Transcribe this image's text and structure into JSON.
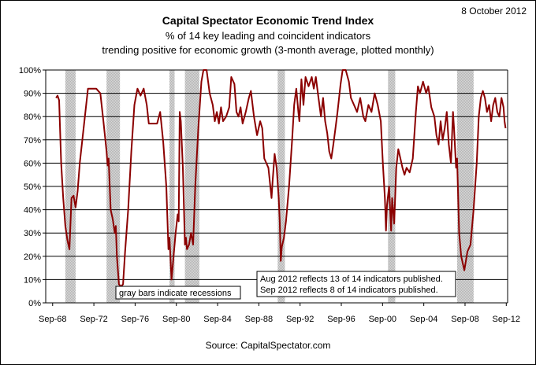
{
  "header": {
    "date": "8 October 2012",
    "title": "Capital Spectator Economic Trend Index",
    "subtitle1": "% of 14 key leading and coincident indicators",
    "subtitle2": "trending positive for economic growth (3-month average, plotted monthly)"
  },
  "footer": {
    "source": "Source: CapitalSpectator.com"
  },
  "colors": {
    "line": "#8b0000",
    "recession": "#b3b3b3",
    "grid": "#000000"
  },
  "chart_data": {
    "type": "line",
    "title": "Capital Spectator Economic Trend Index",
    "xlabel": "",
    "ylabel": "",
    "xlim": [
      1968.0,
      2012.8
    ],
    "ylim": [
      0,
      100
    ],
    "yticks": [
      "0%",
      "10%",
      "20%",
      "30%",
      "40%",
      "50%",
      "60%",
      "70%",
      "80%",
      "90%",
      "100%"
    ],
    "xticks": [
      {
        "x": 1968.67,
        "label": "Sep-68"
      },
      {
        "x": 1972.67,
        "label": "Sep-72"
      },
      {
        "x": 1976.67,
        "label": "Sep-76"
      },
      {
        "x": 1980.67,
        "label": "Sep-80"
      },
      {
        "x": 1984.67,
        "label": "Sep-84"
      },
      {
        "x": 1988.67,
        "label": "Sep-88"
      },
      {
        "x": 1992.67,
        "label": "Sep-92"
      },
      {
        "x": 1996.67,
        "label": "Sep-96"
      },
      {
        "x": 2000.67,
        "label": "Sep-00"
      },
      {
        "x": 2004.67,
        "label": "Sep-04"
      },
      {
        "x": 2008.67,
        "label": "Sep-08"
      },
      {
        "x": 2012.67,
        "label": "Sep-12"
      }
    ],
    "grid": true,
    "recessions": [
      [
        1969.9,
        1970.9
      ],
      [
        1973.9,
        1975.2
      ],
      [
        1980.0,
        1980.5
      ],
      [
        1981.5,
        1982.9
      ],
      [
        1990.5,
        1991.2
      ],
      [
        2001.2,
        2001.9
      ],
      [
        2007.9,
        2009.5
      ]
    ],
    "series": [
      {
        "name": "",
        "points": [
          [
            1969.0,
            88
          ],
          [
            1969.15,
            89
          ],
          [
            1969.3,
            87
          ],
          [
            1969.5,
            60
          ],
          [
            1969.7,
            45
          ],
          [
            1969.9,
            33
          ],
          [
            1970.1,
            27
          ],
          [
            1970.3,
            23
          ],
          [
            1970.5,
            45
          ],
          [
            1970.7,
            46
          ],
          [
            1970.9,
            41
          ],
          [
            1971.1,
            48
          ],
          [
            1971.3,
            60
          ],
          [
            1971.6,
            72
          ],
          [
            1971.9,
            84
          ],
          [
            1972.1,
            92
          ],
          [
            1972.5,
            92
          ],
          [
            1972.9,
            92
          ],
          [
            1973.3,
            90
          ],
          [
            1973.6,
            78
          ],
          [
            1973.9,
            65
          ],
          [
            1974.0,
            59
          ],
          [
            1974.1,
            62
          ],
          [
            1974.3,
            40
          ],
          [
            1974.5,
            36
          ],
          [
            1974.7,
            30
          ],
          [
            1974.8,
            33
          ],
          [
            1974.9,
            20
          ],
          [
            1975.1,
            8
          ],
          [
            1975.3,
            7
          ],
          [
            1975.5,
            8
          ],
          [
            1975.7,
            22
          ],
          [
            1976.0,
            40
          ],
          [
            1976.3,
            65
          ],
          [
            1976.6,
            85
          ],
          [
            1976.9,
            92
          ],
          [
            1977.2,
            89
          ],
          [
            1977.5,
            92
          ],
          [
            1977.8,
            85
          ],
          [
            1978.0,
            77
          ],
          [
            1978.4,
            77
          ],
          [
            1978.8,
            77
          ],
          [
            1979.1,
            82
          ],
          [
            1979.4,
            69
          ],
          [
            1979.7,
            50
          ],
          [
            1979.9,
            23
          ],
          [
            1980.0,
            28
          ],
          [
            1980.2,
            10
          ],
          [
            1980.4,
            20
          ],
          [
            1980.6,
            30
          ],
          [
            1980.8,
            38
          ],
          [
            1980.9,
            35
          ],
          [
            1981.0,
            82
          ],
          [
            1981.1,
            78
          ],
          [
            1981.3,
            58
          ],
          [
            1981.5,
            25
          ],
          [
            1981.6,
            28
          ],
          [
            1981.7,
            23
          ],
          [
            1981.9,
            25
          ],
          [
            1982.1,
            30
          ],
          [
            1982.3,
            25
          ],
          [
            1982.5,
            50
          ],
          [
            1982.8,
            75
          ],
          [
            1983.1,
            95
          ],
          [
            1983.3,
            100
          ],
          [
            1983.6,
            100
          ],
          [
            1983.9,
            90
          ],
          [
            1984.2,
            85
          ],
          [
            1984.4,
            78
          ],
          [
            1984.6,
            82
          ],
          [
            1984.8,
            77
          ],
          [
            1985.0,
            84
          ],
          [
            1985.2,
            78
          ],
          [
            1985.5,
            80
          ],
          [
            1985.8,
            84
          ],
          [
            1986.0,
            97
          ],
          [
            1986.3,
            94
          ],
          [
            1986.5,
            82
          ],
          [
            1986.7,
            80
          ],
          [
            1986.9,
            84
          ],
          [
            1987.1,
            77
          ],
          [
            1987.4,
            82
          ],
          [
            1987.7,
            88
          ],
          [
            1987.9,
            91
          ],
          [
            1988.2,
            80
          ],
          [
            1988.5,
            72
          ],
          [
            1988.8,
            78
          ],
          [
            1989.0,
            75
          ],
          [
            1989.2,
            62
          ],
          [
            1989.4,
            60
          ],
          [
            1989.6,
            58
          ],
          [
            1989.9,
            45
          ],
          [
            1990.0,
            52
          ],
          [
            1990.2,
            64
          ],
          [
            1990.4,
            58
          ],
          [
            1990.6,
            45
          ],
          [
            1990.7,
            35
          ],
          [
            1990.8,
            18
          ],
          [
            1990.9,
            24
          ],
          [
            1991.1,
            28
          ],
          [
            1991.3,
            35
          ],
          [
            1991.6,
            50
          ],
          [
            1991.9,
            70
          ],
          [
            1992.1,
            85
          ],
          [
            1992.3,
            92
          ],
          [
            1992.5,
            82
          ],
          [
            1992.6,
            78
          ],
          [
            1992.8,
            96
          ],
          [
            1993.0,
            85
          ],
          [
            1993.2,
            97
          ],
          [
            1993.5,
            93
          ],
          [
            1993.8,
            97
          ],
          [
            1994.0,
            92
          ],
          [
            1994.2,
            97
          ],
          [
            1994.4,
            90
          ],
          [
            1994.7,
            80
          ],
          [
            1994.9,
            88
          ],
          [
            1995.1,
            78
          ],
          [
            1995.3,
            73
          ],
          [
            1995.5,
            65
          ],
          [
            1995.7,
            62
          ],
          [
            1995.9,
            68
          ],
          [
            1996.1,
            75
          ],
          [
            1996.3,
            82
          ],
          [
            1996.6,
            94
          ],
          [
            1996.8,
            100
          ],
          [
            1997.1,
            100
          ],
          [
            1997.4,
            95
          ],
          [
            1997.6,
            88
          ],
          [
            1997.9,
            85
          ],
          [
            1998.2,
            82
          ],
          [
            1998.5,
            88
          ],
          [
            1998.8,
            80
          ],
          [
            1999.0,
            78
          ],
          [
            1999.3,
            85
          ],
          [
            1999.6,
            82
          ],
          [
            1999.9,
            90
          ],
          [
            2000.2,
            85
          ],
          [
            2000.5,
            78
          ],
          [
            2000.7,
            60
          ],
          [
            2000.9,
            45
          ],
          [
            2001.0,
            31
          ],
          [
            2001.1,
            42
          ],
          [
            2001.3,
            50
          ],
          [
            2001.5,
            31
          ],
          [
            2001.6,
            45
          ],
          [
            2001.8,
            34
          ],
          [
            2002.0,
            58
          ],
          [
            2002.2,
            66
          ],
          [
            2002.4,
            62
          ],
          [
            2002.6,
            58
          ],
          [
            2002.8,
            55
          ],
          [
            2003.0,
            58
          ],
          [
            2003.3,
            56
          ],
          [
            2003.6,
            62
          ],
          [
            2003.9,
            82
          ],
          [
            2004.1,
            93
          ],
          [
            2004.3,
            90
          ],
          [
            2004.6,
            95
          ],
          [
            2004.9,
            90
          ],
          [
            2005.1,
            93
          ],
          [
            2005.4,
            84
          ],
          [
            2005.7,
            80
          ],
          [
            2005.9,
            72
          ],
          [
            2006.1,
            68
          ],
          [
            2006.3,
            78
          ],
          [
            2006.5,
            70
          ],
          [
            2006.7,
            75
          ],
          [
            2006.9,
            82
          ],
          [
            2007.1,
            68
          ],
          [
            2007.3,
            60
          ],
          [
            2007.5,
            82
          ],
          [
            2007.6,
            75
          ],
          [
            2007.8,
            58
          ],
          [
            2007.9,
            62
          ],
          [
            2008.1,
            30
          ],
          [
            2008.3,
            20
          ],
          [
            2008.6,
            14
          ],
          [
            2008.9,
            22
          ],
          [
            2009.2,
            25
          ],
          [
            2009.5,
            40
          ],
          [
            2009.8,
            60
          ],
          [
            2010.0,
            80
          ],
          [
            2010.2,
            88
          ],
          [
            2010.4,
            91
          ],
          [
            2010.6,
            88
          ],
          [
            2010.8,
            82
          ],
          [
            2011.0,
            85
          ],
          [
            2011.2,
            78
          ],
          [
            2011.4,
            85
          ],
          [
            2011.6,
            88
          ],
          [
            2011.7,
            85
          ],
          [
            2011.8,
            82
          ],
          [
            2012.0,
            80
          ],
          [
            2012.2,
            88
          ],
          [
            2012.4,
            84
          ],
          [
            2012.5,
            78
          ],
          [
            2012.6,
            75
          ]
        ]
      }
    ],
    "annotations": {
      "recession_note": "gray bars indicate recessions",
      "data_note_1": "Aug 2012 reflects 13 of 14 indicators published.",
      "data_note_2": "Sep 2012 reflects 8 of 14 indicators published."
    }
  }
}
